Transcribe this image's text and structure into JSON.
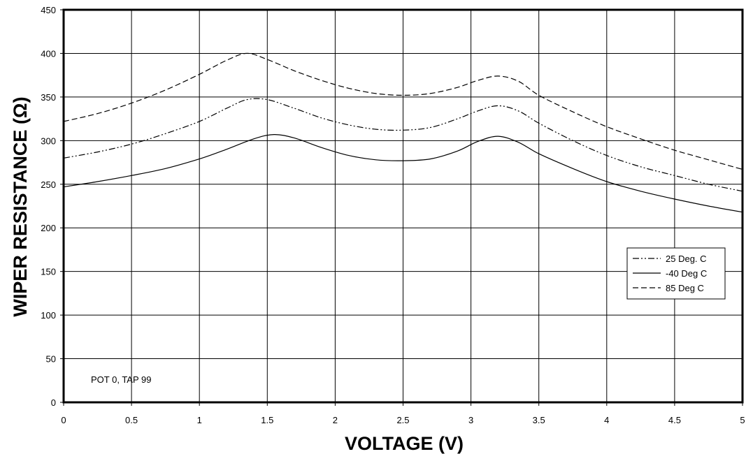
{
  "chart_data": {
    "type": "line",
    "xlabel": "VOLTAGE (V)",
    "ylabel": "WIPER RESISTANCE (Ω)",
    "xlim": [
      0,
      5
    ],
    "ylim": [
      0,
      450
    ],
    "x_ticks": [
      "0",
      "0.5",
      "1",
      "1.5",
      "2",
      "2.5",
      "3",
      "3.5",
      "4",
      "4.5",
      "5"
    ],
    "y_ticks": [
      "0",
      "50",
      "100",
      "150",
      "200",
      "250",
      "300",
      "350",
      "400",
      "450"
    ],
    "grid": true,
    "legend_position": "right",
    "annotation": "POT 0, TAP 99",
    "series": [
      {
        "name": "25 Deg. C",
        "style": "dash-dot-dot",
        "x": [
          0,
          0.25,
          0.5,
          0.75,
          1.0,
          1.2,
          1.35,
          1.5,
          1.7,
          1.9,
          2.1,
          2.3,
          2.5,
          2.7,
          2.9,
          3.05,
          3.2,
          3.35,
          3.5,
          3.75,
          4.0,
          4.25,
          4.5,
          4.75,
          5.0
        ],
        "values": [
          280,
          287,
          296,
          308,
          322,
          337,
          347,
          347,
          337,
          326,
          318,
          313,
          312,
          315,
          325,
          334,
          340,
          334,
          320,
          300,
          283,
          270,
          260,
          250,
          242
        ]
      },
      {
        "name": "-40 Deg C",
        "style": "solid",
        "x": [
          0,
          0.25,
          0.5,
          0.75,
          1.0,
          1.2,
          1.4,
          1.55,
          1.7,
          1.9,
          2.1,
          2.3,
          2.5,
          2.7,
          2.9,
          3.05,
          3.2,
          3.35,
          3.5,
          3.75,
          4.0,
          4.25,
          4.5,
          4.75,
          5.0
        ],
        "values": [
          247,
          253,
          260,
          268,
          279,
          290,
          302,
          307,
          303,
          292,
          283,
          278,
          277,
          279,
          288,
          299,
          305,
          298,
          285,
          268,
          253,
          242,
          233,
          225,
          218
        ]
      },
      {
        "name": "85 Deg C",
        "style": "dashed",
        "x": [
          0,
          0.25,
          0.5,
          0.75,
          1.0,
          1.2,
          1.35,
          1.5,
          1.7,
          1.9,
          2.1,
          2.3,
          2.5,
          2.7,
          2.9,
          3.05,
          3.2,
          3.35,
          3.5,
          3.75,
          4.0,
          4.25,
          4.5,
          4.75,
          5.0
        ],
        "values": [
          322,
          331,
          343,
          358,
          376,
          392,
          400,
          393,
          380,
          369,
          360,
          354,
          352,
          354,
          361,
          369,
          374,
          368,
          352,
          333,
          316,
          302,
          289,
          278,
          267
        ]
      }
    ]
  }
}
